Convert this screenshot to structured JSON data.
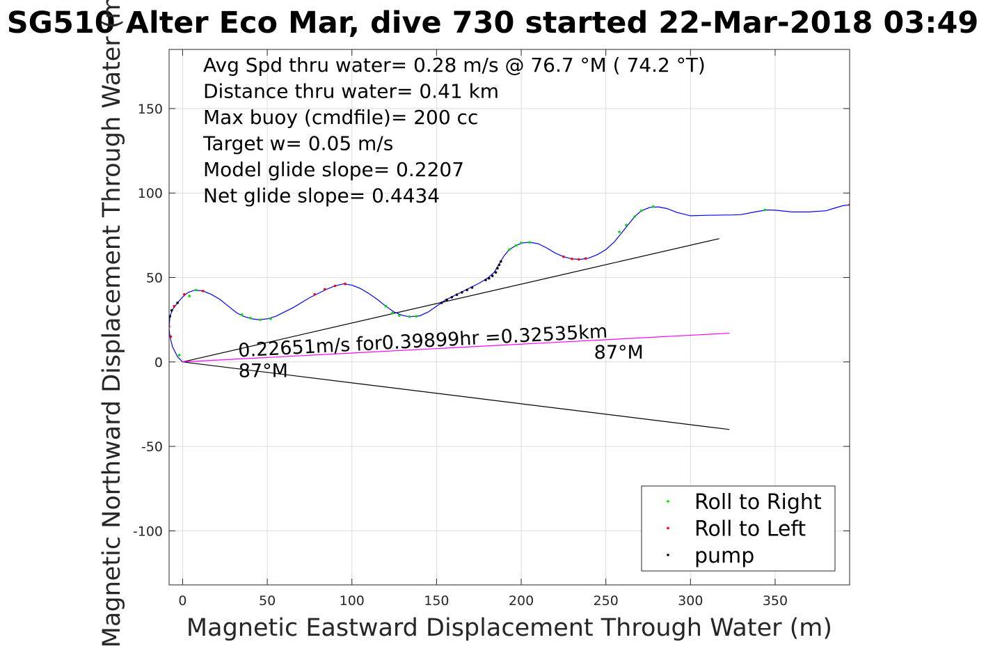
{
  "chart_data": {
    "type": "line",
    "title": "SG510 Alter Eco Mar, dive 730 started 22-Mar-2018 03:49",
    "xlabel": "Magnetic Eastward Displacement Through Water (m)",
    "ylabel": "Magnetic Northward Displacement Through Water (m)",
    "xlim": [
      -8,
      394
    ],
    "ylim": [
      -132,
      185
    ],
    "xticks": [
      0,
      50,
      100,
      150,
      200,
      250,
      300,
      350
    ],
    "yticks": [
      -100,
      -50,
      0,
      50,
      100,
      150
    ],
    "grid": true,
    "legend_position": "bottom-right",
    "info_lines": [
      "Avg Spd thru water=  0.28 m/s @  76.7 °M ( 74.2 °T)",
      "Distance thru water=  0.41 km",
      "Max buoy (cmdfile)= 200 cc",
      "Target w= 0.05 m/s",
      "Model glide slope= 0.2207",
      "Net glide slope= 0.4434"
    ],
    "annotations": [
      {
        "text": "0.22651m/s for0.39899hr =0.32535km",
        "x": 33,
        "y": 3,
        "rotation": -3.0
      },
      {
        "text": "87°M",
        "x": 33,
        "y": -9,
        "rotation": 0
      },
      {
        "text": "87°M",
        "x": 243,
        "y": 2,
        "rotation": 0
      }
    ],
    "track": {
      "name": "track",
      "color": "#0000ff",
      "points": [
        [
          0,
          0
        ],
        [
          -3,
          3
        ],
        [
          -6,
          9
        ],
        [
          -7.5,
          15
        ],
        [
          -8,
          20
        ],
        [
          -7.5,
          27
        ],
        [
          -6,
          31
        ],
        [
          -3,
          35
        ],
        [
          0,
          38.5
        ],
        [
          3,
          41
        ],
        [
          7,
          42.5
        ],
        [
          12,
          42
        ],
        [
          17,
          40
        ],
        [
          22,
          37
        ],
        [
          27,
          33
        ],
        [
          32,
          29
        ],
        [
          36,
          27
        ],
        [
          41,
          25.5
        ],
        [
          45,
          25
        ],
        [
          50,
          25.5
        ],
        [
          55,
          27
        ],
        [
          60,
          29.5
        ],
        [
          65,
          32
        ],
        [
          70,
          35
        ],
        [
          75,
          38
        ],
        [
          80,
          40.5
        ],
        [
          85,
          43
        ],
        [
          90,
          45
        ],
        [
          95,
          46.2
        ],
        [
          100,
          45.5
        ],
        [
          105,
          43.5
        ],
        [
          110,
          40.5
        ],
        [
          115,
          37
        ],
        [
          120,
          33
        ],
        [
          125,
          29.5
        ],
        [
          130,
          27.5
        ],
        [
          134,
          26.8
        ],
        [
          140,
          27.3
        ],
        [
          145,
          29.5
        ],
        [
          150,
          33
        ],
        [
          155,
          36.5
        ],
        [
          160,
          39
        ],
        [
          165,
          41.5
        ],
        [
          170,
          44
        ],
        [
          175,
          46.5
        ],
        [
          180,
          49.5
        ],
        [
          184,
          53
        ],
        [
          187,
          58
        ],
        [
          190,
          63
        ],
        [
          193,
          66.5
        ],
        [
          197,
          69
        ],
        [
          201,
          70.5
        ],
        [
          205,
          70.8
        ],
        [
          210,
          70
        ],
        [
          215,
          67.5
        ],
        [
          220,
          64.5
        ],
        [
          225,
          62.3
        ],
        [
          230,
          61
        ],
        [
          235,
          60.7
        ],
        [
          240,
          61.5
        ],
        [
          245,
          63.5
        ],
        [
          250,
          66.5
        ],
        [
          255,
          71
        ],
        [
          259,
          76
        ],
        [
          263,
          81
        ],
        [
          267,
          86
        ],
        [
          271,
          89.5
        ],
        [
          276,
          91.5
        ],
        [
          281,
          91.8
        ],
        [
          286,
          90.8
        ],
        [
          292,
          88.5
        ],
        [
          300,
          86.5
        ],
        [
          310,
          86.8
        ],
        [
          325,
          87
        ],
        [
          330,
          87.2
        ],
        [
          338,
          88.8
        ],
        [
          345,
          90
        ],
        [
          350,
          89.8
        ],
        [
          360,
          88.8
        ],
        [
          370,
          88.8
        ],
        [
          380,
          89.5
        ],
        [
          385,
          91
        ],
        [
          390,
          92.5
        ],
        [
          394,
          93
        ]
      ]
    },
    "lines": [
      {
        "name": "upper-bound",
        "color": "#000000",
        "from": [
          0,
          0
        ],
        "to": [
          317,
          73
        ]
      },
      {
        "name": "lower-bound",
        "color": "#000000",
        "from": [
          0,
          0
        ],
        "to": [
          323,
          -40
        ]
      },
      {
        "name": "mean-heading",
        "color": "#ff00ff",
        "from": [
          0,
          0
        ],
        "to": [
          323,
          17
        ]
      }
    ],
    "series": [
      {
        "name": "Roll to Right",
        "color": "#00dd00",
        "points": [
          [
            -2,
            4
          ],
          [
            4,
            39
          ],
          [
            8,
            42.5
          ],
          [
            35,
            28
          ],
          [
            40,
            26
          ],
          [
            46,
            25
          ],
          [
            52,
            25.5
          ],
          [
            120,
            33
          ],
          [
            124,
            29
          ],
          [
            128,
            27.5
          ],
          [
            134,
            26.8
          ],
          [
            138,
            27
          ],
          [
            193,
            66.5
          ],
          [
            197,
            69
          ],
          [
            200,
            70.5
          ],
          [
            205,
            70.8
          ],
          [
            258,
            77
          ],
          [
            262,
            81
          ],
          [
            267,
            86
          ],
          [
            271,
            89.5
          ],
          [
            278,
            92
          ],
          [
            344,
            90
          ]
        ]
      },
      {
        "name": "Roll to Left",
        "color": "#ff0000",
        "points": [
          [
            -7,
            15
          ],
          [
            -8,
            21
          ],
          [
            -5,
            33
          ],
          [
            1,
            40
          ],
          [
            12,
            42
          ],
          [
            78,
            40
          ],
          [
            84,
            43
          ],
          [
            90,
            45
          ],
          [
            96,
            46.2
          ],
          [
            225,
            62.3
          ],
          [
            230,
            61
          ],
          [
            234,
            60.7
          ],
          [
            238,
            61.2
          ],
          [
            394,
            93
          ]
        ]
      },
      {
        "name": "pump",
        "color": "#000000",
        "points": [
          [
            153,
            35
          ],
          [
            156,
            36.8
          ],
          [
            159,
            38.3
          ],
          [
            162,
            39.8
          ],
          [
            165,
            41.2
          ],
          [
            168,
            42.6
          ],
          [
            171,
            44
          ],
          [
            179,
            48.5
          ],
          [
            181,
            49.5
          ],
          [
            183,
            51
          ],
          [
            185,
            53
          ],
          [
            186,
            55.5
          ],
          [
            187,
            57.5
          ],
          [
            188,
            59.5
          ],
          [
            -7.5,
            27
          ],
          [
            -6.5,
            30.5
          ],
          [
            -3,
            35
          ]
        ]
      }
    ]
  }
}
